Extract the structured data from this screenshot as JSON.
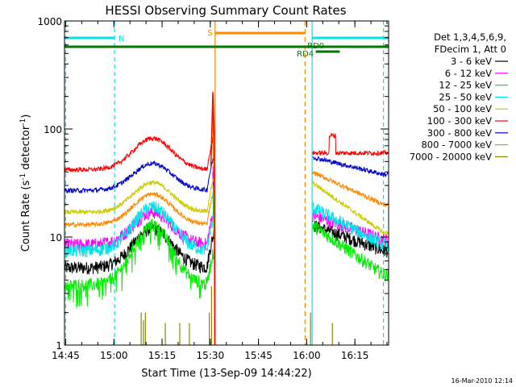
{
  "chart_data": {
    "type": "line",
    "title": "HESSI Observing Summary Count Rates",
    "xlabel": "Start Time (13-Sep-09 14:44:22)",
    "ylabel_main": "Count Rate (s",
    "ylabel_sup1": "-1",
    "ylabel_mid": " detector",
    "ylabel_sup2": "-1",
    "ylabel_end": ")",
    "yscale": "log",
    "ylim": [
      1,
      1000
    ],
    "xlim_minutes": [
      -0.37,
      100.5
    ],
    "x_ticks": [
      {
        "label": "14:45",
        "min": 0
      },
      {
        "label": "15:00",
        "min": 15
      },
      {
        "label": "15:15",
        "min": 30
      },
      {
        "label": "15:30",
        "min": 45
      },
      {
        "label": "15:45",
        "min": 60
      },
      {
        "label": "16:00",
        "min": 75
      },
      {
        "label": "16:15",
        "min": 90
      }
    ],
    "y_ticks": [
      {
        "label": "1",
        "v": 1
      },
      {
        "label": "10",
        "v": 10
      },
      {
        "label": "100",
        "v": 100
      },
      {
        "label": "1000",
        "v": 1000
      }
    ],
    "legend_header": [
      "Det 1,3,4,5,6,9,",
      "FDecim 1, Att 0"
    ],
    "legend_placement": "right",
    "series": [
      {
        "name": "3 - 6 keV",
        "color": "#000000",
        "base": 5.2,
        "peak": 12,
        "post": [
          13,
          7.5
        ]
      },
      {
        "name": "6 - 12 keV",
        "color": "#ff00ff",
        "base": 8.5,
        "peak": 17,
        "post": [
          16,
          9.5
        ]
      },
      {
        "name": "12 - 25 keV",
        "color": "#00ee00",
        "base": 3.6,
        "peak": 13,
        "post": [
          13,
          4.5
        ]
      },
      {
        "name": "25 - 50 keV",
        "color": "#00e5e5",
        "base": 7.5,
        "peak": 19,
        "post": [
          19,
          8.5
        ]
      },
      {
        "name": "50 - 100 keV",
        "color": "#cccc00",
        "base": 17,
        "peak": 32,
        "post": [
          32,
          11
        ]
      },
      {
        "name": "100 - 300 keV",
        "color": "#ff0000",
        "base": 42,
        "peak": 82,
        "post": [
          60,
          60
        ]
      },
      {
        "name": "300 - 800 keV",
        "color": "#0000cc",
        "base": 27,
        "peak": 48,
        "post": [
          55,
          38
        ]
      },
      {
        "name": "800 - 7000 keV",
        "color": "#ff8800",
        "base": 13,
        "peak": 25,
        "post": [
          40,
          20
        ]
      },
      {
        "name": "7000 - 20000 keV",
        "color": "#888800",
        "base": 1,
        "peak": 1,
        "post": [
          1,
          1
        ]
      }
    ],
    "flags": [
      {
        "label": "N",
        "color": "#00e5e5"
      },
      {
        "label": "S",
        "color": "#ff8800"
      },
      {
        "label": "RD0",
        "color": "#007700"
      },
      {
        "label": "RD4",
        "color": "#007700"
      }
    ],
    "timestamp": "16-Mar-2010 12:14"
  }
}
